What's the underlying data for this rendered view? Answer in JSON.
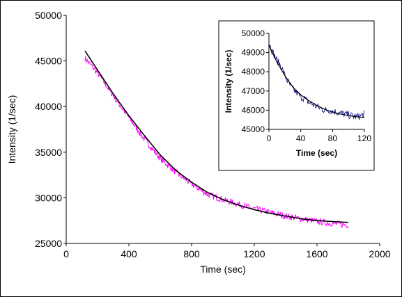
{
  "chart_data": [
    {
      "type": "line",
      "xlabel": "Time (sec)",
      "ylabel": "Intensity (1/sec)",
      "xlim": [
        0,
        2000
      ],
      "ylim": [
        25000,
        50000
      ],
      "x_ticks": [
        "0",
        "400",
        "800",
        "1200",
        "1600",
        "2000"
      ],
      "y_ticks": [
        "25000",
        "30000",
        "35000",
        "40000",
        "45000",
        "50000"
      ],
      "grid": false,
      "series": [
        {
          "color": "#ff00ff",
          "style": "noisy data",
          "x": [
            120,
            200,
            300,
            400,
            500,
            600,
            700,
            800,
            900,
            1000,
            1100,
            1200,
            1300,
            1400,
            1500,
            1600,
            1700,
            1800
          ],
          "y": [
            45300,
            43700,
            41200,
            38800,
            36400,
            34300,
            32800,
            31500,
            30400,
            29800,
            29300,
            28800,
            28400,
            28000,
            27700,
            27400,
            27200,
            27000
          ]
        },
        {
          "color": "#000000",
          "style": "fit curve",
          "x": [
            120,
            200,
            300,
            400,
            500,
            600,
            700,
            800,
            900,
            1000,
            1100,
            1200,
            1300,
            1400,
            1500,
            1600,
            1700,
            1800
          ],
          "y": [
            46100,
            44000,
            41400,
            39000,
            36800,
            34700,
            33000,
            31700,
            30600,
            29800,
            29200,
            28700,
            28300,
            28000,
            27700,
            27500,
            27400,
            27300
          ]
        }
      ]
    },
    {
      "type": "line",
      "xlabel": "Time (sec)",
      "ylabel": "Intensity (1/sec)",
      "xlim": [
        0,
        120
      ],
      "ylim": [
        45000,
        50000
      ],
      "x_ticks": [
        "0",
        "40",
        "80",
        "120"
      ],
      "y_ticks": [
        "45000",
        "46000",
        "47000",
        "48000",
        "49000",
        "50000"
      ],
      "grid": false,
      "series": [
        {
          "color": "#000080",
          "style": "noisy data",
          "x": [
            0,
            5,
            10,
            15,
            20,
            25,
            30,
            35,
            40,
            45,
            50,
            55,
            60,
            65,
            70,
            75,
            80,
            85,
            90,
            95,
            100,
            105,
            110,
            115,
            120
          ],
          "y": [
            49500,
            49000,
            48600,
            48300,
            47800,
            47400,
            47100,
            46900,
            46700,
            46600,
            46400,
            46300,
            46200,
            46100,
            46000,
            46000,
            45950,
            45900,
            45850,
            45800,
            45750,
            45700,
            45650,
            45700,
            45800
          ]
        },
        {
          "color": "#000000",
          "style": "fit curve",
          "x": [
            0,
            10,
            20,
            30,
            40,
            50,
            60,
            70,
            80,
            90,
            100,
            110,
            120
          ],
          "y": [
            49400,
            48500,
            47800,
            47200,
            46800,
            46500,
            46250,
            46050,
            45900,
            45800,
            45720,
            45660,
            45620
          ]
        }
      ]
    }
  ]
}
